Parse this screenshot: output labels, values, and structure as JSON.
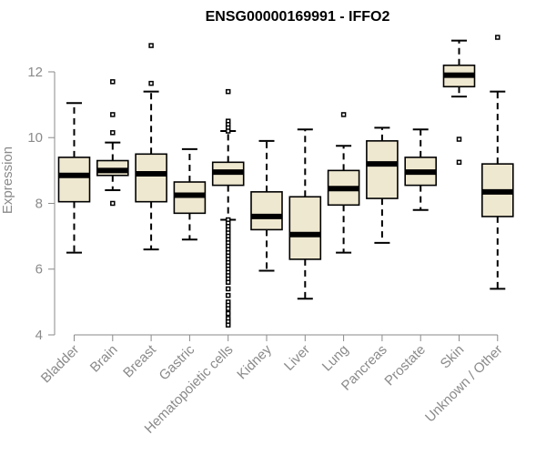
{
  "chart_data": {
    "type": "boxplot",
    "title": "ENSG00000169991 - IFFO2",
    "ylabel": "Expression",
    "xlabel": "",
    "ylim": [
      4,
      13.3
    ],
    "yticks": [
      4,
      6,
      8,
      10,
      12
    ],
    "box_color": "#efe8d0",
    "axis_color": "#8a8a8a",
    "categories": [
      "Bladder",
      "Brain",
      "Breast",
      "Gastric",
      "Hematopoietic cells",
      "Kidney",
      "Liver",
      "Lung",
      "Pancreas",
      "Prostate",
      "Skin",
      "Unknown / Other"
    ],
    "boxes": [
      {
        "name": "Bladder",
        "whislo": 6.5,
        "q1": 8.05,
        "med": 8.85,
        "q3": 9.4,
        "whishi": 11.05,
        "fliers": []
      },
      {
        "name": "Brain",
        "whislo": 8.4,
        "q1": 8.85,
        "med": 9.0,
        "q3": 9.3,
        "whishi": 9.85,
        "fliers": [
          11.7,
          10.7,
          10.15,
          8.0
        ]
      },
      {
        "name": "Breast",
        "whislo": 6.6,
        "q1": 8.05,
        "med": 8.9,
        "q3": 9.5,
        "whishi": 11.4,
        "fliers": [
          12.8,
          11.65
        ]
      },
      {
        "name": "Gastric",
        "whislo": 6.9,
        "q1": 7.7,
        "med": 8.25,
        "q3": 8.65,
        "whishi": 9.65,
        "fliers": []
      },
      {
        "name": "Hematopoietic cells",
        "whislo": 7.5,
        "q1": 8.55,
        "med": 8.95,
        "q3": 9.25,
        "whishi": 10.2,
        "fliers": [
          11.4,
          10.5,
          10.4,
          10.3,
          10.2,
          7.5,
          7.4,
          7.3,
          7.2,
          7.1,
          7.0,
          6.9,
          6.8,
          6.7,
          6.6,
          6.5,
          6.4,
          6.3,
          6.2,
          6.1,
          6.0,
          5.9,
          5.8,
          5.7,
          5.6,
          5.4,
          5.2,
          5.0,
          4.9,
          4.8,
          4.65,
          4.5,
          4.4,
          4.3
        ]
      },
      {
        "name": "Kidney",
        "whislo": 5.95,
        "q1": 7.2,
        "med": 7.6,
        "q3": 8.35,
        "whishi": 9.9,
        "fliers": []
      },
      {
        "name": "Liver",
        "whislo": 5.1,
        "q1": 6.3,
        "med": 7.05,
        "q3": 8.2,
        "whishi": 10.25,
        "fliers": []
      },
      {
        "name": "Lung",
        "whislo": 6.5,
        "q1": 7.95,
        "med": 8.45,
        "q3": 9.0,
        "whishi": 9.75,
        "fliers": [
          10.7
        ]
      },
      {
        "name": "Pancreas",
        "whislo": 6.8,
        "q1": 8.15,
        "med": 9.2,
        "q3": 9.9,
        "whishi": 10.3,
        "fliers": []
      },
      {
        "name": "Prostate",
        "whislo": 7.8,
        "q1": 8.55,
        "med": 8.95,
        "q3": 9.4,
        "whishi": 10.25,
        "fliers": []
      },
      {
        "name": "Skin",
        "whislo": 11.25,
        "q1": 11.55,
        "med": 11.9,
        "q3": 12.2,
        "whishi": 12.95,
        "fliers": [
          9.95,
          9.25
        ]
      },
      {
        "name": "Unknown / Other",
        "whislo": 5.4,
        "q1": 7.6,
        "med": 8.35,
        "q3": 9.2,
        "whishi": 11.4,
        "fliers": [
          13.05
        ]
      }
    ]
  }
}
